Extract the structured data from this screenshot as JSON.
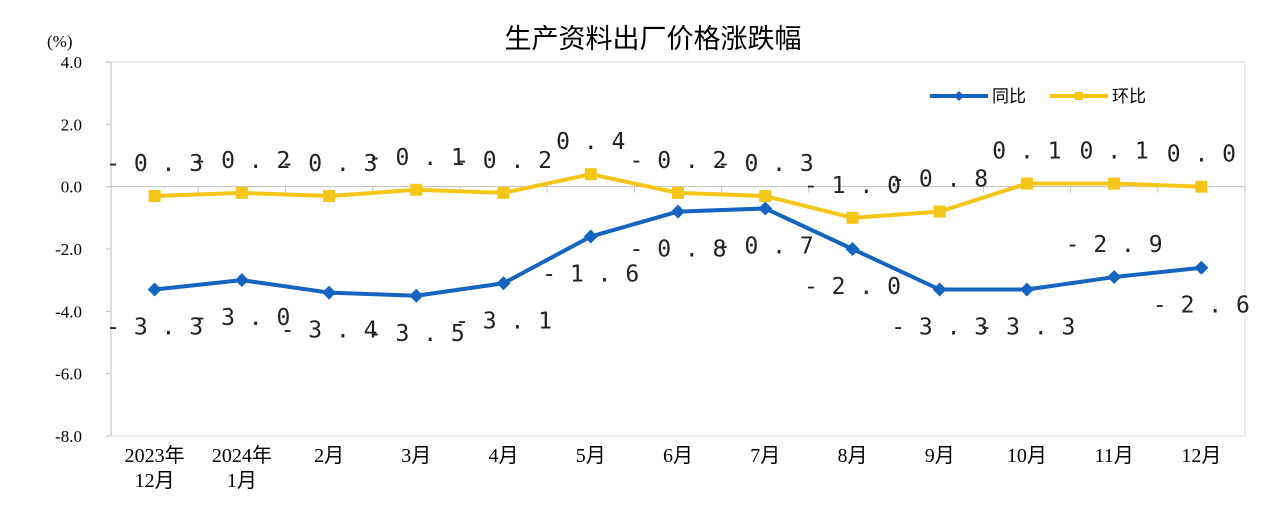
{
  "chart_data": {
    "type": "line",
    "title": "生产资料出厂价格涨跌幅",
    "unit_label": "(%)",
    "ylim": [
      -8.0,
      4.0
    ],
    "y_ticks": [
      "4.0",
      "2.0",
      "0.0",
      "-2.0",
      "-4.0",
      "-6.0",
      "-8.0"
    ],
    "y_tick_values": [
      4,
      2,
      0,
      -2,
      -4,
      -6,
      -8
    ],
    "categories": [
      [
        "2023年",
        "12月"
      ],
      [
        "2024年",
        "1月"
      ],
      [
        "2月"
      ],
      [
        "3月"
      ],
      [
        "4月"
      ],
      [
        "5月"
      ],
      [
        "6月"
      ],
      [
        "7月"
      ],
      [
        "8月"
      ],
      [
        "9月"
      ],
      [
        "10月"
      ],
      [
        "11月"
      ],
      [
        "12月"
      ]
    ],
    "series": [
      {
        "name": "同比",
        "color": "#1565C0",
        "marker": "diamond",
        "values": [
          -3.3,
          -3.0,
          -3.4,
          -3.5,
          -3.1,
          -1.6,
          -0.8,
          -0.7,
          -2.0,
          -3.3,
          -3.3,
          -2.9,
          -2.6
        ],
        "labels": [
          "-3.3",
          "-3.0",
          "-3.4",
          "-3.5",
          "-3.1",
          "-1.6",
          "-0.8",
          "-0.7",
          "-2.0",
          "-3.3",
          "-3.3",
          "-2.9",
          "-2.6"
        ],
        "label_side": [
          "below",
          "below",
          "below",
          "below",
          "below",
          "below",
          "below",
          "below",
          "below",
          "below",
          "below",
          "above",
          "below"
        ]
      },
      {
        "name": "环比",
        "color": "#F5C518",
        "marker": "square",
        "values": [
          -0.3,
          -0.2,
          -0.3,
          -0.1,
          -0.2,
          0.4,
          -0.2,
          -0.3,
          -1.0,
          -0.8,
          0.1,
          0.1,
          0.0
        ],
        "labels": [
          "-0.3",
          "-0.2",
          "-0.3",
          "-0.1",
          "-0.2",
          "0.4",
          "-0.2",
          "-0.3",
          "-1.0",
          "-0.8",
          "0.1",
          "0.1",
          "0.0"
        ],
        "label_side": [
          "above",
          "above",
          "above",
          "above",
          "above",
          "above",
          "above",
          "above",
          "above",
          "above",
          "above",
          "above",
          "above"
        ]
      }
    ],
    "legend_position": "top-right",
    "grid": false
  }
}
